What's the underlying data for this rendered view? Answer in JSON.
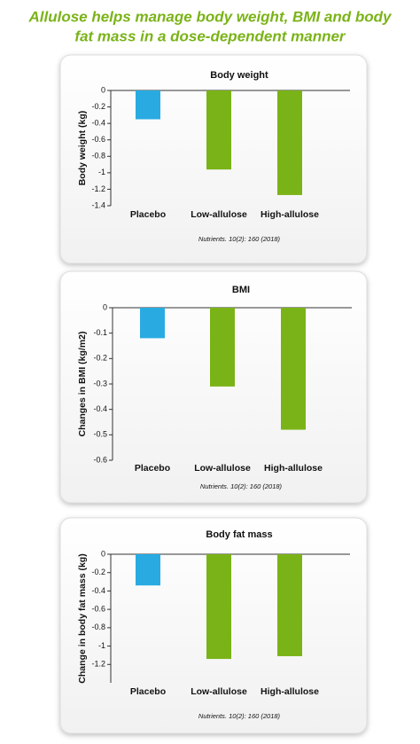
{
  "title_lines": [
    "Allulose helps manage body weight, BMI and body",
    "fat mass in a dose-dependent manner"
  ],
  "chart_data": [
    {
      "type": "bar",
      "title": "Body weight",
      "y_label": "Body weight (kg)",
      "source": "Nutrients. 10(2): 160 (2018)",
      "categories": [
        "Placebo",
        "Low-allulose",
        "High-allulose"
      ],
      "values": [
        -0.35,
        -0.96,
        -1.27
      ],
      "colors": [
        "#29abe2",
        "#7ab317",
        "#7ab317"
      ],
      "ylim": [
        -1.4,
        0
      ],
      "yticks": [
        0,
        -0.2,
        -0.4,
        -0.6,
        -0.8,
        -1,
        -1.2,
        -1.4
      ]
    },
    {
      "type": "bar",
      "title": "BMI",
      "y_label": "Changes in BMI (kg/m2)",
      "source": "Nutrients. 10(2): 160 (2018)",
      "categories": [
        "Placebo",
        "Low-allulose",
        "High-allulose"
      ],
      "values": [
        -0.12,
        -0.31,
        -0.48
      ],
      "colors": [
        "#29abe2",
        "#7ab317",
        "#7ab317"
      ],
      "ylim": [
        -0.6,
        0
      ],
      "yticks": [
        0,
        -0.1,
        -0.2,
        -0.3,
        -0.4,
        -0.5,
        -0.6
      ]
    },
    {
      "type": "bar",
      "title": "Body fat mass",
      "y_label": "Change in body fat mass (kg)",
      "source": "Nutrients. 10(2): 160 (2018)",
      "categories": [
        "Placebo",
        "Low-allulose",
        "High-allulose"
      ],
      "values": [
        -0.34,
        -1.14,
        -1.11
      ],
      "colors": [
        "#29abe2",
        "#7ab317",
        "#7ab317"
      ],
      "ylim": [
        -1.4,
        0
      ],
      "yticks": [
        0,
        -0.2,
        -0.4,
        -0.6,
        -0.8,
        -1,
        -1.2
      ]
    }
  ]
}
